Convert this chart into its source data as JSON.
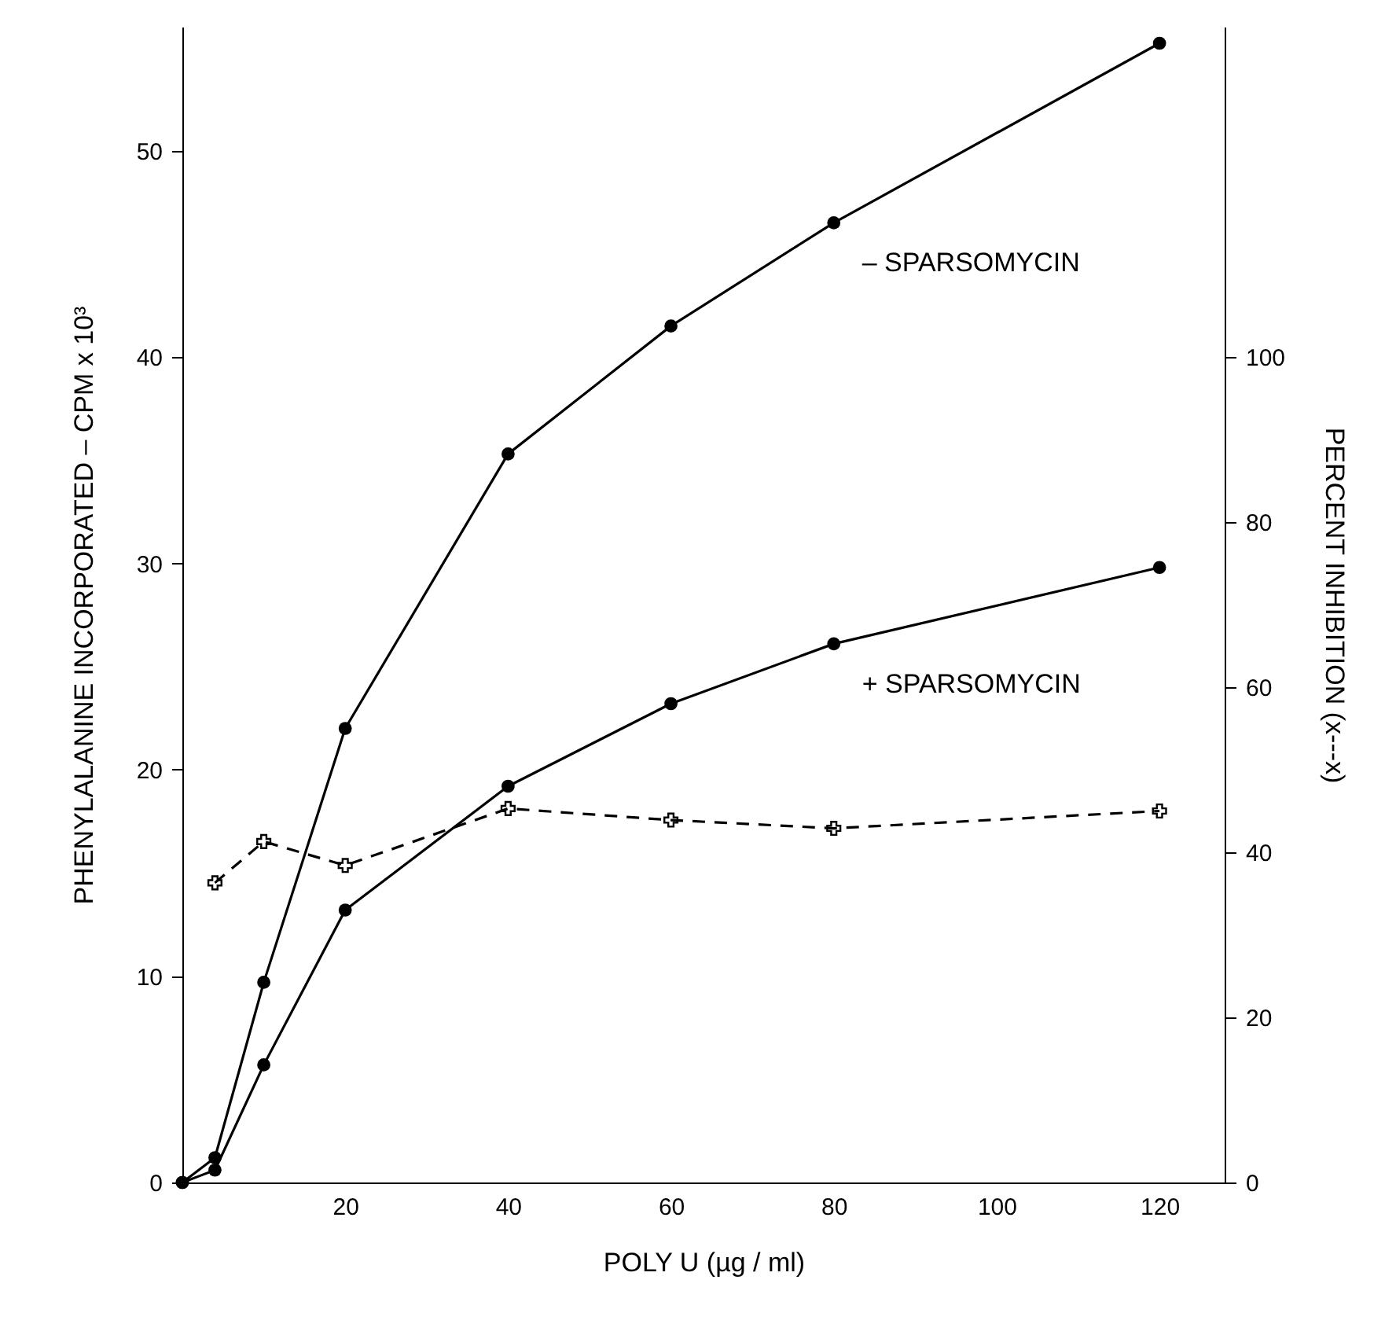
{
  "chart_data": {
    "type": "line",
    "xlabel": "POLY U   (µg / ml)",
    "ylabel": "PHENYLALANINE  INCORPORATED  –  CPM x 10³",
    "y2label": "PERCENT  INHIBITION (x---x)",
    "x": [
      0,
      4,
      10,
      20,
      40,
      60,
      80,
      120
    ],
    "series": [
      {
        "name": "– SPARSOMYCIN",
        "color": "#000000",
        "marker": "circle",
        "line_style": "solid",
        "values": [
          0,
          1.2,
          9.7,
          22.0,
          35.3,
          41.5,
          46.5,
          55.2
        ]
      },
      {
        "name": "+ SPARSOMYCIN",
        "color": "#000000",
        "marker": "circle",
        "line_style": "solid",
        "values": [
          0,
          0.6,
          5.7,
          13.2,
          19.2,
          23.2,
          26.1,
          29.8
        ]
      },
      {
        "color": "#000000",
        "marker": "cross",
        "line_style": "dashed",
        "axis": "y2",
        "x": [
          4,
          10,
          20,
          40,
          60,
          80,
          120
        ],
        "values": [
          36.3,
          41.3,
          38.4,
          45.3,
          43.9,
          42.9,
          45.0
        ]
      }
    ],
    "xlim": [
      0,
      128
    ],
    "xticks": [
      20,
      40,
      60,
      80,
      100,
      120
    ],
    "ylim": [
      0,
      56
    ],
    "yticks": [
      0,
      10,
      20,
      30,
      40,
      50
    ],
    "y2lim": [
      0,
      140
    ],
    "y2ticks": [
      0,
      20,
      40,
      60,
      80,
      100
    ],
    "grid": false
  }
}
